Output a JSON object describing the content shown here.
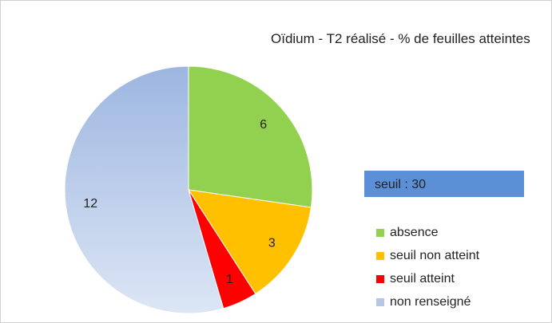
{
  "chart_data": {
    "type": "pie",
    "title": "Oïdium  - T2 réalisé - % de feuilles atteintes",
    "annotation": "seuil : 30",
    "categories": [
      "absence",
      "seuil non atteint",
      "seuil atteint",
      "non renseigné"
    ],
    "values": [
      6,
      3,
      1,
      12
    ],
    "colors": [
      "#92d050",
      "#ffc000",
      "#ff0000",
      "#b4c7e7"
    ],
    "legend": "right"
  }
}
